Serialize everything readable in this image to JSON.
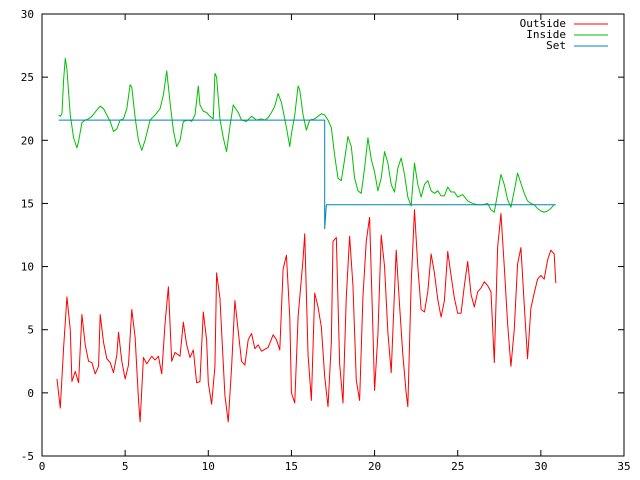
{
  "chart_data": {
    "type": "line",
    "title": "",
    "xlabel": "",
    "ylabel": "",
    "xlim": [
      0,
      35
    ],
    "ylim": [
      -5,
      30
    ],
    "xticks": [
      0,
      5,
      10,
      15,
      20,
      25,
      30,
      35
    ],
    "yticks": [
      -5,
      0,
      5,
      10,
      15,
      20,
      25,
      30
    ],
    "grid": false,
    "legend_position": "top-right",
    "series": [
      {
        "name": "Outside",
        "color": "#ff0000",
        "points": [
          [
            0.9,
            1.1
          ],
          [
            1.1,
            -1.2
          ],
          [
            1.3,
            3.6
          ],
          [
            1.5,
            7.6
          ],
          [
            1.7,
            5.0
          ],
          [
            1.8,
            0.9
          ],
          [
            2.0,
            1.7
          ],
          [
            2.2,
            0.8
          ],
          [
            2.4,
            6.2
          ],
          [
            2.6,
            3.8
          ],
          [
            2.8,
            2.5
          ],
          [
            3.0,
            2.4
          ],
          [
            3.2,
            1.5
          ],
          [
            3.4,
            2.1
          ],
          [
            3.5,
            6.2
          ],
          [
            3.7,
            4.0
          ],
          [
            3.9,
            2.7
          ],
          [
            4.1,
            2.4
          ],
          [
            4.3,
            1.6
          ],
          [
            4.5,
            3.0
          ],
          [
            4.6,
            4.8
          ],
          [
            4.8,
            2.5
          ],
          [
            5.0,
            1.1
          ],
          [
            5.2,
            2.2
          ],
          [
            5.4,
            6.6
          ],
          [
            5.6,
            4.4
          ],
          [
            5.8,
            -0.5
          ],
          [
            5.9,
            -2.3
          ],
          [
            6.1,
            2.8
          ],
          [
            6.3,
            2.3
          ],
          [
            6.6,
            2.9
          ],
          [
            6.8,
            2.6
          ],
          [
            7.0,
            2.9
          ],
          [
            7.2,
            1.5
          ],
          [
            7.4,
            5.5
          ],
          [
            7.6,
            8.4
          ],
          [
            7.8,
            2.5
          ],
          [
            8.0,
            3.2
          ],
          [
            8.3,
            2.9
          ],
          [
            8.5,
            5.6
          ],
          [
            8.7,
            3.8
          ],
          [
            8.9,
            2.8
          ],
          [
            9.1,
            3.4
          ],
          [
            9.3,
            0.8
          ],
          [
            9.5,
            0.9
          ],
          [
            9.7,
            6.4
          ],
          [
            9.9,
            4.2
          ],
          [
            10.0,
            0.8
          ],
          [
            10.2,
            -0.9
          ],
          [
            10.4,
            2.1
          ],
          [
            10.5,
            9.5
          ],
          [
            10.7,
            7.5
          ],
          [
            11.0,
            -0.2
          ],
          [
            11.2,
            -2.3
          ],
          [
            11.4,
            2.0
          ],
          [
            11.6,
            7.3
          ],
          [
            11.8,
            4.9
          ],
          [
            12.0,
            2.5
          ],
          [
            12.2,
            2.2
          ],
          [
            12.4,
            4.2
          ],
          [
            12.6,
            4.7
          ],
          [
            12.8,
            3.5
          ],
          [
            13.0,
            3.8
          ],
          [
            13.2,
            3.3
          ],
          [
            13.6,
            3.6
          ],
          [
            13.9,
            4.6
          ],
          [
            14.1,
            4.2
          ],
          [
            14.3,
            3.4
          ],
          [
            14.5,
            9.8
          ],
          [
            14.7,
            10.9
          ],
          [
            14.9,
            6.0
          ],
          [
            15.0,
            0.0
          ],
          [
            15.2,
            -0.8
          ],
          [
            15.4,
            6.0
          ],
          [
            15.7,
            10.6
          ],
          [
            15.8,
            12.6
          ],
          [
            16.0,
            3.0
          ],
          [
            16.2,
            -0.6
          ],
          [
            16.4,
            7.9
          ],
          [
            16.6,
            6.8
          ],
          [
            16.8,
            5.2
          ],
          [
            17.0,
            1.3
          ],
          [
            17.2,
            -1.1
          ],
          [
            17.4,
            4.0
          ],
          [
            17.5,
            12.0
          ],
          [
            17.7,
            12.3
          ],
          [
            17.9,
            2.3
          ],
          [
            18.1,
            -0.8
          ],
          [
            18.3,
            7.6
          ],
          [
            18.5,
            12.4
          ],
          [
            18.7,
            8.5
          ],
          [
            18.9,
            1.0
          ],
          [
            19.1,
            -0.6
          ],
          [
            19.3,
            7.6
          ],
          [
            19.5,
            12.0
          ],
          [
            19.7,
            13.9
          ],
          [
            19.9,
            5.0
          ],
          [
            20.0,
            0.2
          ],
          [
            20.2,
            4.6
          ],
          [
            20.4,
            12.5
          ],
          [
            20.6,
            10.0
          ],
          [
            20.8,
            4.8
          ],
          [
            21.0,
            1.6
          ],
          [
            21.3,
            11.3
          ],
          [
            21.5,
            7.0
          ],
          [
            21.7,
            3.0
          ],
          [
            21.9,
            0.0
          ],
          [
            22.0,
            -1.1
          ],
          [
            22.2,
            8.6
          ],
          [
            22.4,
            14.5
          ],
          [
            22.6,
            10.0
          ],
          [
            22.8,
            6.6
          ],
          [
            23.0,
            6.4
          ],
          [
            23.2,
            8.0
          ],
          [
            23.4,
            11.0
          ],
          [
            23.6,
            9.5
          ],
          [
            23.8,
            7.4
          ],
          [
            24.0,
            6.0
          ],
          [
            24.2,
            7.3
          ],
          [
            24.4,
            11.2
          ],
          [
            24.6,
            9.3
          ],
          [
            24.8,
            7.5
          ],
          [
            25.0,
            6.3
          ],
          [
            25.2,
            6.3
          ],
          [
            25.4,
            8.5
          ],
          [
            25.6,
            10.4
          ],
          [
            25.8,
            7.8
          ],
          [
            26.0,
            6.8
          ],
          [
            26.2,
            8.0
          ],
          [
            26.4,
            8.3
          ],
          [
            26.6,
            8.8
          ],
          [
            26.8,
            8.5
          ],
          [
            27.0,
            8.0
          ],
          [
            27.2,
            2.4
          ],
          [
            27.4,
            11.5
          ],
          [
            27.6,
            14.2
          ],
          [
            27.8,
            10.0
          ],
          [
            28.0,
            5.5
          ],
          [
            28.2,
            2.1
          ],
          [
            28.4,
            5.0
          ],
          [
            28.6,
            10.2
          ],
          [
            28.8,
            11.5
          ],
          [
            29.0,
            7.0
          ],
          [
            29.2,
            2.7
          ],
          [
            29.4,
            6.7
          ],
          [
            29.6,
            7.9
          ],
          [
            29.8,
            9.0
          ],
          [
            30.0,
            9.3
          ],
          [
            30.2,
            9.0
          ],
          [
            30.4,
            10.5
          ],
          [
            30.6,
            11.3
          ],
          [
            30.8,
            11.0
          ],
          [
            30.9,
            8.7
          ]
        ]
      },
      {
        "name": "Inside",
        "color": "#00c000",
        "points": [
          [
            1.0,
            22.0
          ],
          [
            1.1,
            21.9
          ],
          [
            1.2,
            22.1
          ],
          [
            1.3,
            24.8
          ],
          [
            1.4,
            26.5
          ],
          [
            1.5,
            25.6
          ],
          [
            1.7,
            22.0
          ],
          [
            1.9,
            20.2
          ],
          [
            2.1,
            19.4
          ],
          [
            2.2,
            19.9
          ],
          [
            2.4,
            21.4
          ],
          [
            2.6,
            21.6
          ],
          [
            2.8,
            21.7
          ],
          [
            3.0,
            21.9
          ],
          [
            3.3,
            22.4
          ],
          [
            3.5,
            22.7
          ],
          [
            3.7,
            22.5
          ],
          [
            3.9,
            22.0
          ],
          [
            4.1,
            21.5
          ],
          [
            4.3,
            20.7
          ],
          [
            4.5,
            20.9
          ],
          [
            4.7,
            21.6
          ],
          [
            4.9,
            21.7
          ],
          [
            5.1,
            22.5
          ],
          [
            5.3,
            24.4
          ],
          [
            5.4,
            24.2
          ],
          [
            5.6,
            21.8
          ],
          [
            5.8,
            20.0
          ],
          [
            6.0,
            19.2
          ],
          [
            6.2,
            20.0
          ],
          [
            6.5,
            21.6
          ],
          [
            6.8,
            22.0
          ],
          [
            7.1,
            22.5
          ],
          [
            7.3,
            23.6
          ],
          [
            7.5,
            25.5
          ],
          [
            7.7,
            23.0
          ],
          [
            7.9,
            20.8
          ],
          [
            8.1,
            19.5
          ],
          [
            8.3,
            20.0
          ],
          [
            8.5,
            21.5
          ],
          [
            8.8,
            21.6
          ],
          [
            9.0,
            21.5
          ],
          [
            9.2,
            22.0
          ],
          [
            9.4,
            24.3
          ],
          [
            9.5,
            22.8
          ],
          [
            9.7,
            22.3
          ],
          [
            9.9,
            22.2
          ],
          [
            10.1,
            21.9
          ],
          [
            10.3,
            21.7
          ],
          [
            10.4,
            25.3
          ],
          [
            10.5,
            25.0
          ],
          [
            10.7,
            21.7
          ],
          [
            10.9,
            20.2
          ],
          [
            11.1,
            19.1
          ],
          [
            11.3,
            21.1
          ],
          [
            11.5,
            22.8
          ],
          [
            11.8,
            22.2
          ],
          [
            12.0,
            21.6
          ],
          [
            12.3,
            21.5
          ],
          [
            12.6,
            21.9
          ],
          [
            12.9,
            21.6
          ],
          [
            13.2,
            21.7
          ],
          [
            13.4,
            21.6
          ],
          [
            13.6,
            21.8
          ],
          [
            13.8,
            22.2
          ],
          [
            14.0,
            22.7
          ],
          [
            14.2,
            23.7
          ],
          [
            14.4,
            23.0
          ],
          [
            14.7,
            21.0
          ],
          [
            14.9,
            19.5
          ],
          [
            15.0,
            20.5
          ],
          [
            15.2,
            22.0
          ],
          [
            15.4,
            24.3
          ],
          [
            15.5,
            24.0
          ],
          [
            15.7,
            22.0
          ],
          [
            15.9,
            20.8
          ],
          [
            16.1,
            21.6
          ],
          [
            16.4,
            21.7
          ],
          [
            16.6,
            21.9
          ],
          [
            16.8,
            22.1
          ],
          [
            17.0,
            22.0
          ],
          [
            17.2,
            21.6
          ],
          [
            17.4,
            21.0
          ],
          [
            17.6,
            18.8
          ],
          [
            17.8,
            17.0
          ],
          [
            18.0,
            16.8
          ],
          [
            18.2,
            18.5
          ],
          [
            18.4,
            20.3
          ],
          [
            18.6,
            19.5
          ],
          [
            18.8,
            17.0
          ],
          [
            19.0,
            16.0
          ],
          [
            19.2,
            15.8
          ],
          [
            19.4,
            17.8
          ],
          [
            19.6,
            20.2
          ],
          [
            19.8,
            18.5
          ],
          [
            20.0,
            17.5
          ],
          [
            20.2,
            16.0
          ],
          [
            20.4,
            17.0
          ],
          [
            20.6,
            19.1
          ],
          [
            20.8,
            18.2
          ],
          [
            21.0,
            16.5
          ],
          [
            21.2,
            15.9
          ],
          [
            21.4,
            17.8
          ],
          [
            21.6,
            18.6
          ],
          [
            21.8,
            17.3
          ],
          [
            22.0,
            15.5
          ],
          [
            22.2,
            14.8
          ],
          [
            22.4,
            18.2
          ],
          [
            22.6,
            16.5
          ],
          [
            22.8,
            15.5
          ],
          [
            23.0,
            16.5
          ],
          [
            23.2,
            16.8
          ],
          [
            23.4,
            16.0
          ],
          [
            23.6,
            15.8
          ],
          [
            23.8,
            16.0
          ],
          [
            24.0,
            15.6
          ],
          [
            24.2,
            15.6
          ],
          [
            24.4,
            16.3
          ],
          [
            24.6,
            15.9
          ],
          [
            24.8,
            15.9
          ],
          [
            25.0,
            15.5
          ],
          [
            25.3,
            15.7
          ],
          [
            25.6,
            15.2
          ],
          [
            25.9,
            15.0
          ],
          [
            26.2,
            14.9
          ],
          [
            26.5,
            14.9
          ],
          [
            26.8,
            15.0
          ],
          [
            27.0,
            14.5
          ],
          [
            27.2,
            14.3
          ],
          [
            27.4,
            15.8
          ],
          [
            27.6,
            17.3
          ],
          [
            27.8,
            16.5
          ],
          [
            28.0,
            15.3
          ],
          [
            28.2,
            14.7
          ],
          [
            28.4,
            16.0
          ],
          [
            28.6,
            17.4
          ],
          [
            28.8,
            16.6
          ],
          [
            29.0,
            15.8
          ],
          [
            29.2,
            15.2
          ],
          [
            29.4,
            15.0
          ],
          [
            29.6,
            14.9
          ],
          [
            29.8,
            14.6
          ],
          [
            30.0,
            14.4
          ],
          [
            30.2,
            14.3
          ],
          [
            30.4,
            14.4
          ],
          [
            30.6,
            14.6
          ],
          [
            30.8,
            14.9
          ]
        ]
      },
      {
        "name": "Set",
        "color": "#0080c0",
        "points": [
          [
            1.0,
            21.6
          ],
          [
            17.0,
            21.6
          ],
          [
            17.0,
            13.0
          ],
          [
            17.1,
            14.9
          ],
          [
            30.9,
            14.9
          ]
        ]
      }
    ]
  }
}
